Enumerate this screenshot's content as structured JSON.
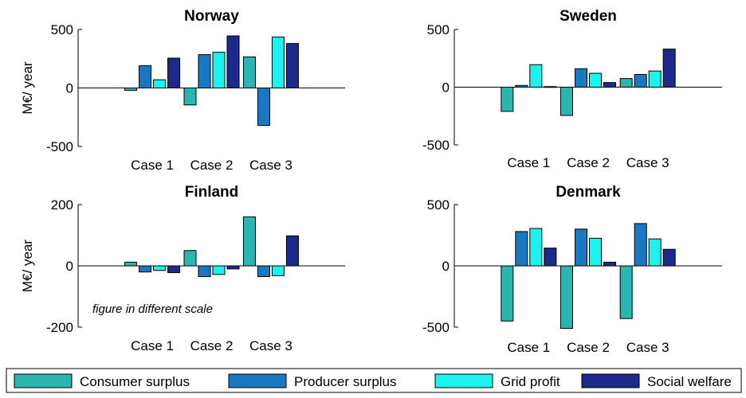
{
  "legend": {
    "placement": "bottom",
    "items": [
      {
        "label": "Consumer surplus",
        "color": "#2ab5b0"
      },
      {
        "label": "Producer surplus",
        "color": "#1a78c2"
      },
      {
        "label": "Grid profit",
        "color": "#1cf2ee"
      },
      {
        "label": "Social welfare",
        "color": "#1b2a8c"
      }
    ]
  },
  "chart_data": [
    {
      "type": "bar",
      "title": "Norway",
      "ylabel": "M€/ year",
      "ylim": [
        -500,
        500
      ],
      "yticks": [
        "500",
        "0",
        "-500"
      ],
      "categories": [
        "Case 1",
        "Case 2",
        "Case 3"
      ],
      "series": [
        {
          "name": "Consumer surplus",
          "values": [
            -20,
            -145,
            265
          ]
        },
        {
          "name": "Producer surplus",
          "values": [
            190,
            285,
            -320
          ]
        },
        {
          "name": "Grid profit",
          "values": [
            70,
            305,
            435
          ]
        },
        {
          "name": "Social welfare",
          "values": [
            255,
            445,
            380
          ]
        }
      ],
      "annotation": ""
    },
    {
      "type": "bar",
      "title": "Sweden",
      "ylabel": "",
      "ylim": [
        -500,
        500
      ],
      "yticks": [
        "500",
        "0",
        "-500"
      ],
      "categories": [
        "Case 1",
        "Case 2",
        "Case 3"
      ],
      "series": [
        {
          "name": "Consumer surplus",
          "values": [
            -210,
            -245,
            75
          ]
        },
        {
          "name": "Producer surplus",
          "values": [
            15,
            160,
            110
          ]
        },
        {
          "name": "Grid profit",
          "values": [
            195,
            120,
            140
          ]
        },
        {
          "name": "Social welfare",
          "values": [
            5,
            40,
            330
          ]
        }
      ],
      "annotation": ""
    },
    {
      "type": "bar",
      "title": "Finland",
      "ylabel": "M€/ year",
      "ylim": [
        -200,
        200
      ],
      "yticks": [
        "200",
        "0",
        "-200"
      ],
      "categories": [
        "Case 1",
        "Case 2",
        "Case 3"
      ],
      "series": [
        {
          "name": "Consumer surplus",
          "values": [
            12,
            50,
            160
          ]
        },
        {
          "name": "Producer surplus",
          "values": [
            -20,
            -35,
            -35
          ]
        },
        {
          "name": "Grid profit",
          "values": [
            -15,
            -28,
            -32
          ]
        },
        {
          "name": "Social welfare",
          "values": [
            -22,
            -10,
            98
          ]
        }
      ],
      "annotation": "figure in different scale"
    },
    {
      "type": "bar",
      "title": "Denmark",
      "ylabel": "",
      "ylim": [
        -500,
        500
      ],
      "yticks": [
        "500",
        "0",
        "-500"
      ],
      "categories": [
        "Case 1",
        "Case 2",
        "Case 3"
      ],
      "series": [
        {
          "name": "Consumer surplus",
          "values": [
            -450,
            -510,
            -430
          ]
        },
        {
          "name": "Producer surplus",
          "values": [
            280,
            300,
            345
          ]
        },
        {
          "name": "Grid profit",
          "values": [
            305,
            225,
            220
          ]
        },
        {
          "name": "Social welfare",
          "values": [
            145,
            30,
            135
          ]
        }
      ],
      "annotation": ""
    }
  ]
}
